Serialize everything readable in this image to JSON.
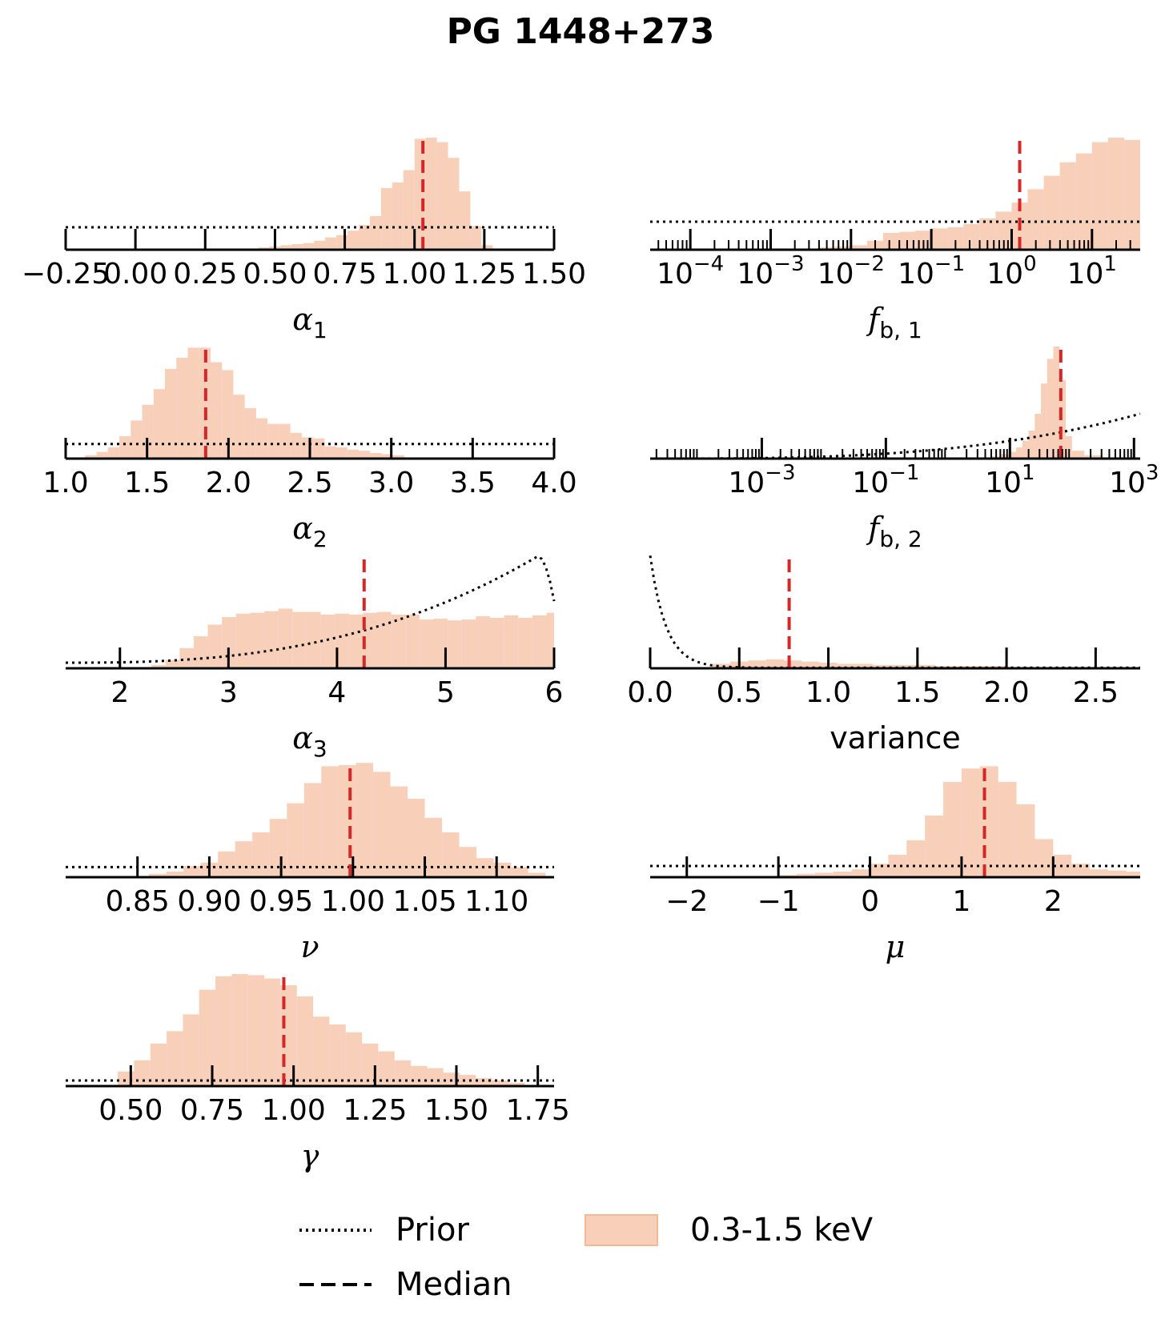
{
  "title": "PG 1448+273",
  "colors": {
    "hist_fill": "#f8cfb8",
    "hist_edge": "#f2b89a",
    "median": "#d62728",
    "prior": "#000000",
    "axis": "#000000"
  },
  "legend": {
    "prior_label": "Prior",
    "median_label": "Median",
    "band_label": "0.3-1.5 keV"
  },
  "chart_data": [
    {
      "id": "alpha1",
      "type": "histogram",
      "xlabel": "α1",
      "xlabel_base": "α",
      "xlabel_sub": "1",
      "xscale": "linear",
      "xlim": [
        -0.25,
        1.5
      ],
      "ticks": [
        -0.25,
        0.0,
        0.25,
        0.5,
        0.75,
        1.0,
        1.25,
        1.5
      ],
      "tick_labels": [
        "−0.25",
        "0.00",
        "0.25",
        "0.50",
        "0.75",
        "1.00",
        "1.25",
        "1.50"
      ],
      "bins": [
        [
          0.4,
          0.44,
          0.01
        ],
        [
          0.44,
          0.48,
          0.02
        ],
        [
          0.48,
          0.52,
          0.03
        ],
        [
          0.52,
          0.56,
          0.04
        ],
        [
          0.56,
          0.6,
          0.05
        ],
        [
          0.6,
          0.64,
          0.06
        ],
        [
          0.64,
          0.68,
          0.08
        ],
        [
          0.68,
          0.72,
          0.11
        ],
        [
          0.72,
          0.76,
          0.13
        ],
        [
          0.76,
          0.8,
          0.17
        ],
        [
          0.8,
          0.84,
          0.22
        ],
        [
          0.84,
          0.88,
          0.3
        ],
        [
          0.88,
          0.92,
          0.55
        ],
        [
          0.92,
          0.96,
          0.6
        ],
        [
          0.96,
          1.0,
          0.71
        ],
        [
          1.0,
          1.04,
          0.99
        ],
        [
          1.04,
          1.08,
          1.0
        ],
        [
          1.08,
          1.12,
          0.96
        ],
        [
          1.12,
          1.16,
          0.82
        ],
        [
          1.16,
          1.2,
          0.52
        ],
        [
          1.2,
          1.24,
          0.21
        ],
        [
          1.24,
          1.28,
          0.04
        ]
      ],
      "median": 1.03,
      "prior": {
        "kind": "flat",
        "level": 0.2
      }
    },
    {
      "id": "fb1",
      "type": "histogram",
      "xlabel": "fb,1",
      "xlabel_base": "f",
      "xlabel_sub": "b, 1",
      "xscale": "log",
      "xlim": [
        -4.5,
        1.6
      ],
      "ticks": [
        -4,
        -3,
        -2,
        -1,
        0,
        1
      ],
      "tick_labels": [
        "10−4",
        "10−3",
        "10−2",
        "10−1",
        "100",
        "101"
      ],
      "tick_bases": [
        "10",
        "10",
        "10",
        "10",
        "10",
        "10"
      ],
      "tick_exps": [
        "−4",
        "−3",
        "−2",
        "−1",
        "0",
        "1"
      ],
      "bins": [
        [
          -2.4,
          -2.2,
          0.02
        ],
        [
          -2.2,
          -2.0,
          0.03
        ],
        [
          -2.0,
          -1.8,
          0.04
        ],
        [
          -1.8,
          -1.6,
          0.08
        ],
        [
          -1.6,
          -1.4,
          0.15
        ],
        [
          -1.4,
          -1.2,
          0.16
        ],
        [
          -1.2,
          -1.0,
          0.17
        ],
        [
          -1.0,
          -0.8,
          0.19
        ],
        [
          -0.8,
          -0.6,
          0.2
        ],
        [
          -0.6,
          -0.4,
          0.23
        ],
        [
          -0.4,
          -0.2,
          0.28
        ],
        [
          -0.2,
          0.0,
          0.34
        ],
        [
          0.0,
          0.2,
          0.42
        ],
        [
          0.2,
          0.4,
          0.54
        ],
        [
          0.4,
          0.6,
          0.66
        ],
        [
          0.6,
          0.8,
          0.78
        ],
        [
          0.8,
          1.0,
          0.86
        ],
        [
          1.0,
          1.2,
          0.96
        ],
        [
          1.2,
          1.4,
          1.0
        ],
        [
          1.4,
          1.6,
          0.98
        ]
      ],
      "median": 0.1,
      "prior": {
        "kind": "flat",
        "level": 0.25
      }
    },
    {
      "id": "alpha2",
      "type": "histogram",
      "xlabel": "α2",
      "xlabel_base": "α",
      "xlabel_sub": "2",
      "xscale": "linear",
      "xlim": [
        1.0,
        4.0
      ],
      "ticks": [
        1.0,
        1.5,
        2.0,
        2.5,
        3.0,
        3.5,
        4.0
      ],
      "tick_labels": [
        "1.0",
        "1.5",
        "2.0",
        "2.5",
        "3.0",
        "3.5",
        "4.0"
      ],
      "bins": [
        [
          1.12,
          1.19,
          0.03
        ],
        [
          1.19,
          1.26,
          0.06
        ],
        [
          1.26,
          1.33,
          0.1
        ],
        [
          1.33,
          1.4,
          0.2
        ],
        [
          1.4,
          1.47,
          0.34
        ],
        [
          1.47,
          1.54,
          0.48
        ],
        [
          1.54,
          1.61,
          0.62
        ],
        [
          1.61,
          1.68,
          0.8
        ],
        [
          1.68,
          1.75,
          0.9
        ],
        [
          1.75,
          1.82,
          0.99
        ],
        [
          1.82,
          1.89,
          0.99
        ],
        [
          1.89,
          1.96,
          0.86
        ],
        [
          1.96,
          2.03,
          0.79
        ],
        [
          2.03,
          2.1,
          0.57
        ],
        [
          2.1,
          2.17,
          0.45
        ],
        [
          2.17,
          2.24,
          0.36
        ],
        [
          2.24,
          2.31,
          0.31
        ],
        [
          2.31,
          2.38,
          0.31
        ],
        [
          2.38,
          2.45,
          0.23
        ],
        [
          2.45,
          2.52,
          0.19
        ],
        [
          2.52,
          2.59,
          0.18
        ],
        [
          2.59,
          2.66,
          0.11
        ],
        [
          2.66,
          2.73,
          0.1
        ],
        [
          2.73,
          2.8,
          0.08
        ],
        [
          2.8,
          2.87,
          0.07
        ],
        [
          2.87,
          2.94,
          0.05
        ],
        [
          2.94,
          3.01,
          0.04
        ],
        [
          3.01,
          3.08,
          0.03
        ]
      ],
      "median": 1.86,
      "prior": {
        "kind": "flat",
        "level": 0.13
      }
    },
    {
      "id": "fb2",
      "type": "histogram",
      "xlabel": "fb,2",
      "xlabel_base": "f",
      "xlabel_sub": "b, 2",
      "xscale": "log",
      "xlim": [
        -4.8,
        3.1
      ],
      "ticks": [
        -3,
        -1,
        1,
        3
      ],
      "tick_labels": [
        "10−3",
        "10−1",
        "101",
        "103"
      ],
      "tick_bases": [
        "10",
        "10",
        "10",
        "10"
      ],
      "tick_exps": [
        "−3",
        "−1",
        "1",
        "3"
      ],
      "bins": [
        [
          0.7,
          0.85,
          0.02
        ],
        [
          0.85,
          1.0,
          0.04
        ],
        [
          1.0,
          1.1,
          0.06
        ],
        [
          1.1,
          1.2,
          0.1
        ],
        [
          1.2,
          1.3,
          0.16
        ],
        [
          1.3,
          1.4,
          0.25
        ],
        [
          1.4,
          1.5,
          0.4
        ],
        [
          1.5,
          1.6,
          0.67
        ],
        [
          1.6,
          1.7,
          0.89
        ],
        [
          1.7,
          1.8,
          1.0
        ],
        [
          1.8,
          1.9,
          0.7
        ],
        [
          1.9,
          2.0,
          0.2
        ],
        [
          2.0,
          2.2,
          0.07
        ],
        [
          2.2,
          2.5,
          0.03
        ]
      ],
      "median": 1.82,
      "prior": {
        "kind": "rising",
        "level_start": 0.0,
        "level_end": 0.4
      }
    },
    {
      "id": "alpha3",
      "type": "histogram",
      "xlabel": "α3",
      "xlabel_base": "α",
      "xlabel_sub": "3",
      "xscale": "linear",
      "xlim": [
        1.5,
        6.0
      ],
      "ticks": [
        2,
        3,
        4,
        5,
        6
      ],
      "tick_labels": [
        "2",
        "3",
        "4",
        "5",
        "6"
      ],
      "bins": [
        [
          2.29,
          2.42,
          0.04
        ],
        [
          2.42,
          2.55,
          0.1
        ],
        [
          2.55,
          2.68,
          0.24
        ],
        [
          2.68,
          2.81,
          0.38
        ],
        [
          2.81,
          2.94,
          0.52
        ],
        [
          2.94,
          3.07,
          0.61
        ],
        [
          3.07,
          3.2,
          0.65
        ],
        [
          3.2,
          3.33,
          0.66
        ],
        [
          3.33,
          3.46,
          0.68
        ],
        [
          3.46,
          3.59,
          0.71
        ],
        [
          3.59,
          3.72,
          0.67
        ],
        [
          3.72,
          3.85,
          0.67
        ],
        [
          3.85,
          3.98,
          0.64
        ],
        [
          3.98,
          4.11,
          0.65
        ],
        [
          4.11,
          4.24,
          0.64
        ],
        [
          4.24,
          4.37,
          0.66
        ],
        [
          4.37,
          4.5,
          0.67
        ],
        [
          4.5,
          4.63,
          0.64
        ],
        [
          4.63,
          4.76,
          0.64
        ],
        [
          4.76,
          4.89,
          0.58
        ],
        [
          4.89,
          5.02,
          0.59
        ],
        [
          5.02,
          5.15,
          0.57
        ],
        [
          5.15,
          5.28,
          0.58
        ],
        [
          5.28,
          5.41,
          0.62
        ],
        [
          5.41,
          5.54,
          0.6
        ],
        [
          5.54,
          5.67,
          0.63
        ],
        [
          5.67,
          5.8,
          0.6
        ],
        [
          5.8,
          5.93,
          0.63
        ],
        [
          5.93,
          6.06,
          0.66
        ]
      ],
      "median": 4.25,
      "prior": {
        "kind": "rising_peak",
        "peak_x": 5.85,
        "level_start": 0.05,
        "level_peak": 1.0
      }
    },
    {
      "id": "variance",
      "type": "histogram",
      "xlabel": "variance",
      "xscale": "linear",
      "xlim": [
        0.0,
        2.75
      ],
      "ticks": [
        0.0,
        0.5,
        1.0,
        1.5,
        2.0,
        2.5
      ],
      "tick_labels": [
        "0.0",
        "0.5",
        "1.0",
        "1.5",
        "2.0",
        "2.5"
      ],
      "bins": [
        [
          0.25,
          0.35,
          0.01
        ],
        [
          0.35,
          0.45,
          0.04
        ],
        [
          0.45,
          0.55,
          0.06
        ],
        [
          0.55,
          0.65,
          0.07
        ],
        [
          0.65,
          0.75,
          0.08
        ],
        [
          0.75,
          0.85,
          0.07
        ],
        [
          0.85,
          0.95,
          0.06
        ],
        [
          0.95,
          1.05,
          0.05
        ],
        [
          1.05,
          1.25,
          0.04
        ],
        [
          1.25,
          1.6,
          0.03
        ],
        [
          1.6,
          2.0,
          0.02
        ],
        [
          2.0,
          2.75,
          0.01
        ]
      ],
      "median": 0.78,
      "prior": {
        "kind": "decay",
        "scale": 0.09,
        "level_start": 1.0
      }
    },
    {
      "id": "nu",
      "type": "histogram",
      "xlabel": "ν",
      "xlabel_base": "ν",
      "xscale": "linear",
      "xlim": [
        0.8,
        1.14
      ],
      "ticks": [
        0.85,
        0.9,
        0.95,
        1.0,
        1.05,
        1.1
      ],
      "tick_labels": [
        "0.85",
        "0.90",
        "0.95",
        "1.00",
        "1.05",
        "1.10"
      ],
      "bins": [
        [
          0.858,
          0.87,
          0.03
        ],
        [
          0.87,
          0.882,
          0.05
        ],
        [
          0.882,
          0.894,
          0.1
        ],
        [
          0.894,
          0.906,
          0.13
        ],
        [
          0.906,
          0.918,
          0.23
        ],
        [
          0.918,
          0.93,
          0.32
        ],
        [
          0.93,
          0.942,
          0.4
        ],
        [
          0.942,
          0.954,
          0.52
        ],
        [
          0.954,
          0.966,
          0.66
        ],
        [
          0.966,
          0.978,
          0.84
        ],
        [
          0.978,
          0.99,
          0.99
        ],
        [
          0.99,
          1.002,
          1.0
        ],
        [
          1.002,
          1.014,
          1.02
        ],
        [
          1.014,
          1.026,
          0.94
        ],
        [
          1.026,
          1.038,
          0.81
        ],
        [
          1.038,
          1.05,
          0.7
        ],
        [
          1.05,
          1.062,
          0.53
        ],
        [
          1.062,
          1.074,
          0.4
        ],
        [
          1.074,
          1.086,
          0.27
        ],
        [
          1.086,
          1.098,
          0.17
        ],
        [
          1.098,
          1.11,
          0.13
        ],
        [
          1.11,
          1.122,
          0.09
        ],
        [
          1.122,
          1.134,
          0.04
        ]
      ],
      "median": 0.998,
      "prior": {
        "kind": "flat",
        "level": 0.09
      }
    },
    {
      "id": "mu",
      "type": "histogram",
      "xlabel": "μ",
      "xlabel_base": "μ",
      "xscale": "linear",
      "xlim": [
        -2.4,
        2.95
      ],
      "ticks": [
        -2,
        -1,
        0,
        1,
        2
      ],
      "tick_labels": [
        "−2",
        "−1",
        "0",
        "1",
        "2"
      ],
      "bins": [
        [
          -1.0,
          -0.8,
          0.02
        ],
        [
          -0.8,
          -0.6,
          0.03
        ],
        [
          -0.6,
          -0.4,
          0.04
        ],
        [
          -0.4,
          -0.2,
          0.05
        ],
        [
          -0.2,
          0.0,
          0.07
        ],
        [
          0.0,
          0.2,
          0.12
        ],
        [
          0.2,
          0.4,
          0.2
        ],
        [
          0.4,
          0.6,
          0.33
        ],
        [
          0.6,
          0.8,
          0.55
        ],
        [
          0.8,
          1.0,
          0.85
        ],
        [
          1.0,
          1.2,
          0.97
        ],
        [
          1.2,
          1.4,
          0.99
        ],
        [
          1.4,
          1.6,
          0.85
        ],
        [
          1.6,
          1.8,
          0.65
        ],
        [
          1.8,
          2.0,
          0.34
        ],
        [
          2.0,
          2.2,
          0.2
        ],
        [
          2.2,
          2.4,
          0.12
        ],
        [
          2.4,
          2.6,
          0.07
        ],
        [
          2.6,
          2.8,
          0.06
        ],
        [
          2.8,
          2.95,
          0.05
        ]
      ],
      "median": 1.25,
      "prior": {
        "kind": "flat",
        "level": 0.1
      }
    },
    {
      "id": "gamma",
      "type": "histogram",
      "xlabel": "γ",
      "xlabel_base": "γ",
      "xscale": "linear",
      "xlim": [
        0.3,
        1.8
      ],
      "ticks": [
        0.5,
        0.75,
        1.0,
        1.25,
        1.5,
        1.75
      ],
      "tick_labels": [
        "0.50",
        "0.75",
        "1.00",
        "1.25",
        "1.50",
        "1.75"
      ],
      "bins": [
        [
          0.46,
          0.51,
          0.13
        ],
        [
          0.51,
          0.56,
          0.23
        ],
        [
          0.56,
          0.61,
          0.38
        ],
        [
          0.61,
          0.66,
          0.49
        ],
        [
          0.66,
          0.71,
          0.64
        ],
        [
          0.71,
          0.76,
          0.86
        ],
        [
          0.76,
          0.81,
          0.98
        ],
        [
          0.81,
          0.86,
          1.0
        ],
        [
          0.86,
          0.91,
          0.99
        ],
        [
          0.91,
          0.96,
          0.96
        ],
        [
          0.96,
          1.01,
          0.9
        ],
        [
          1.01,
          1.06,
          0.8
        ],
        [
          1.06,
          1.11,
          0.62
        ],
        [
          1.11,
          1.16,
          0.55
        ],
        [
          1.16,
          1.21,
          0.48
        ],
        [
          1.21,
          1.26,
          0.38
        ],
        [
          1.26,
          1.31,
          0.31
        ],
        [
          1.31,
          1.36,
          0.23
        ],
        [
          1.36,
          1.41,
          0.18
        ],
        [
          1.41,
          1.46,
          0.16
        ],
        [
          1.46,
          1.51,
          0.12
        ],
        [
          1.51,
          1.56,
          0.1
        ],
        [
          1.56,
          1.61,
          0.07
        ],
        [
          1.61,
          1.66,
          0.05
        ],
        [
          1.66,
          1.71,
          0.03
        ]
      ],
      "median": 0.97,
      "prior": {
        "kind": "flat",
        "level": 0.05
      }
    }
  ]
}
